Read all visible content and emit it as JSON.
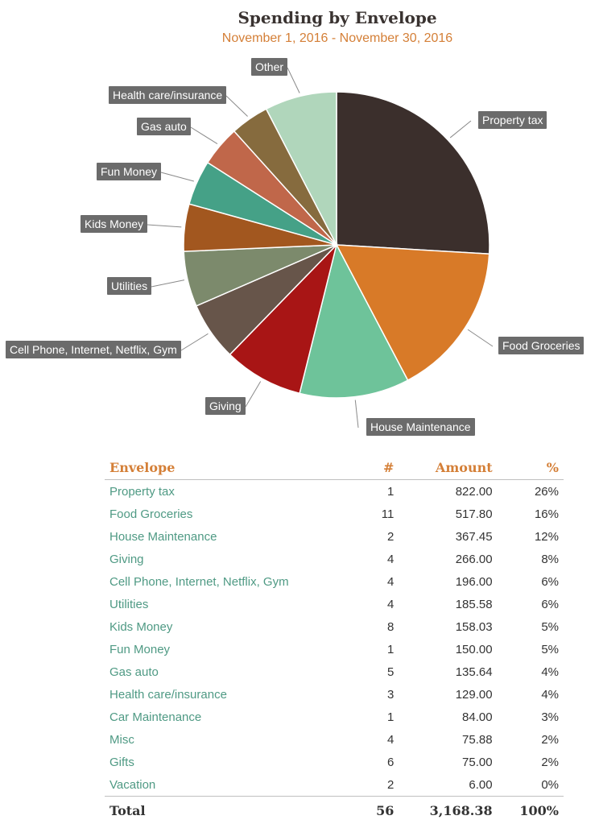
{
  "chart_data": {
    "type": "pie",
    "title": "Spending by Envelope",
    "subtitle": "November 1, 2016 - November 30, 2016",
    "slices": [
      {
        "label": "Property tax",
        "value": 822.0,
        "color": "#3b2f2c"
      },
      {
        "label": "Food Groceries",
        "value": 517.8,
        "color": "#d87a28"
      },
      {
        "label": "House Maintenance",
        "value": 367.45,
        "color": "#6ec39a"
      },
      {
        "label": "Giving",
        "value": 266.0,
        "color": "#a81515"
      },
      {
        "label": "Cell Phone, Internet, Netflix, Gym",
        "value": 196.0,
        "color": "#67554a"
      },
      {
        "label": "Utilities",
        "value": 185.58,
        "color": "#7c8a6c"
      },
      {
        "label": "Kids Money",
        "value": 158.03,
        "color": "#a2571f"
      },
      {
        "label": "Fun Money",
        "value": 150.0,
        "color": "#45a187"
      },
      {
        "label": "Gas auto",
        "value": 135.64,
        "color": "#c0674a"
      },
      {
        "label": "Health care/insurance",
        "value": 129.0,
        "color": "#866b3e"
      },
      {
        "label": "Other",
        "value": 240.88,
        "color": "#b0d6bb"
      }
    ]
  },
  "table": {
    "headers": {
      "envelope": "Envelope",
      "count": "#",
      "amount": "Amount",
      "percent": "%"
    },
    "rows": [
      {
        "name": "Property tax",
        "count": "1",
        "amount": "822.00",
        "pct": "26%"
      },
      {
        "name": "Food Groceries",
        "count": "11",
        "amount": "517.80",
        "pct": "16%"
      },
      {
        "name": "House Maintenance",
        "count": "2",
        "amount": "367.45",
        "pct": "12%"
      },
      {
        "name": "Giving",
        "count": "4",
        "amount": "266.00",
        "pct": "8%"
      },
      {
        "name": "Cell Phone, Internet, Netflix, Gym",
        "count": "4",
        "amount": "196.00",
        "pct": "6%"
      },
      {
        "name": "Utilities",
        "count": "4",
        "amount": "185.58",
        "pct": "6%"
      },
      {
        "name": "Kids Money",
        "count": "8",
        "amount": "158.03",
        "pct": "5%"
      },
      {
        "name": "Fun Money",
        "count": "1",
        "amount": "150.00",
        "pct": "5%"
      },
      {
        "name": "Gas auto",
        "count": "5",
        "amount": "135.64",
        "pct": "4%"
      },
      {
        "name": "Health care/insurance",
        "count": "3",
        "amount": "129.00",
        "pct": "4%"
      },
      {
        "name": "Car Maintenance",
        "count": "1",
        "amount": "84.00",
        "pct": "3%"
      },
      {
        "name": "Misc",
        "count": "4",
        "amount": "75.88",
        "pct": "2%"
      },
      {
        "name": "Gifts",
        "count": "6",
        "amount": "75.00",
        "pct": "2%"
      },
      {
        "name": "Vacation",
        "count": "2",
        "amount": "6.00",
        "pct": "0%"
      }
    ],
    "total": {
      "label": "Total",
      "count": "56",
      "amount": "3,168.38",
      "pct": "100%"
    }
  }
}
